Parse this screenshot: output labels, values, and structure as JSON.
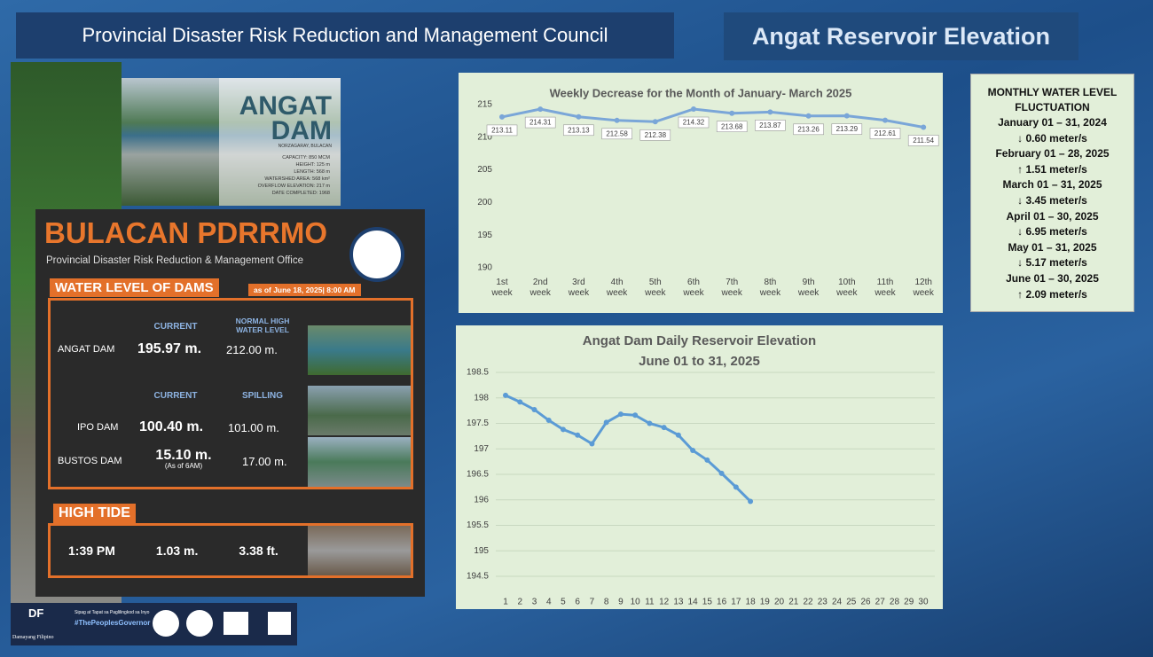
{
  "header": {
    "council": "Provincial Disaster Risk Reduction and Management Council",
    "title": "Angat Reservoir Elevation"
  },
  "dam_card": {
    "name1": "ANGAT",
    "name2": "DAM",
    "place": "NORZAGARAY, BULACAN",
    "specs": [
      "CAPACITY: 850 MCM",
      "HEIGHT: 125 m",
      "LENGTH: 568 m",
      "WATERSHED AREA: 568 km²",
      "OVERFLOW ELEVATION: 217 m",
      "DATE COMPLETED: 1968"
    ]
  },
  "pdrrmo": {
    "logo1": "BULACAN",
    "logo2": "PDRRMO",
    "office": "Provincial Disaster Risk Reduction & Management Office",
    "dams_title": "WATER LEVEL OF DAMS",
    "as_of": "as of June 18, 2025| 8:00 AM",
    "groups": [
      {
        "headers": [
          "CURRENT",
          "NORMAL HIGH WATER LEVEL"
        ],
        "rows": [
          {
            "name": "ANGAT DAM",
            "current": "195.97 m.",
            "level": "212.00 m."
          }
        ]
      },
      {
        "headers": [
          "CURRENT",
          "SPILLING"
        ],
        "rows": [
          {
            "name": "IPO DAM",
            "current": "100.40 m.",
            "level": "101.00 m."
          },
          {
            "name": "BUSTOS DAM",
            "current": "15.10 m.",
            "note": "(As of 6AM)",
            "level": "17.00 m."
          }
        ]
      }
    ],
    "tide_title": "HIGH TIDE",
    "tide": [
      "1:39 PM",
      "1.03 m.",
      "3.38 ft."
    ]
  },
  "footer": {
    "logo": "DF",
    "brand": "Damayang Filipino",
    "motto": "Sipag at Tapat sa Paglilingkod sa Inyo",
    "tag": "#ThePeoplesGovernor"
  },
  "fluctuation": {
    "title": "MONTHLY WATER LEVEL FLUCTUATION",
    "items": [
      {
        "period": "January 01 – 31, 2024",
        "change": "↓ 0.60 meter/s"
      },
      {
        "period": "February 01 – 28, 2025",
        "change": "↑ 1.51 meter/s"
      },
      {
        "period": "March 01 – 31, 2025",
        "change": "↓ 3.45 meter/s"
      },
      {
        "period": "April 01 – 30, 2025",
        "change": "↓ 6.95  meter/s"
      },
      {
        "period": "May 01 – 31, 2025",
        "change": "↓ 5.17 meter/s"
      },
      {
        "period": "June 01 – 30, 2025",
        "change": "↑ 2.09 meter/s"
      }
    ]
  },
  "chart_data": [
    {
      "type": "line",
      "title": "Weekly Decrease for the Month of  January- March 2025",
      "color": "#7aa6d8",
      "categories": [
        "1st week",
        "2nd week",
        "3rd week",
        "4th week",
        "5th week",
        "6th week",
        "7th week",
        "8th week",
        "9th week",
        "10th week",
        "11th week",
        "12th week"
      ],
      "values": [
        213.11,
        214.31,
        213.13,
        212.58,
        212.38,
        214.32,
        213.68,
        213.87,
        213.26,
        213.29,
        212.61,
        211.54
      ],
      "ylim": [
        190,
        215
      ],
      "yticks": [
        190,
        195,
        200,
        205,
        210,
        215
      ],
      "grid": false
    },
    {
      "type": "line",
      "title": "Angat Dam Daily Reservoir Elevation",
      "subtitle": "June 01 to 31, 2025",
      "color": "#5b9bd5",
      "x": [
        1,
        2,
        3,
        4,
        5,
        6,
        7,
        8,
        9,
        10,
        11,
        12,
        13,
        14,
        15,
        16,
        17,
        18,
        19,
        20,
        21,
        22,
        23,
        24,
        25,
        26,
        27,
        28,
        29,
        30
      ],
      "values": [
        198.05,
        197.92,
        197.77,
        197.56,
        197.38,
        197.27,
        197.1,
        197.52,
        197.68,
        197.66,
        197.5,
        197.42,
        197.27,
        196.97,
        196.78,
        196.52,
        196.25,
        195.97,
        null,
        null,
        null,
        null,
        null,
        null,
        null,
        null,
        null,
        null,
        null,
        null
      ],
      "ylim": [
        194.5,
        198.5
      ],
      "yticks": [
        194.5,
        195,
        195.5,
        196,
        196.5,
        197,
        197.5,
        198,
        198.5
      ],
      "grid": true
    }
  ]
}
